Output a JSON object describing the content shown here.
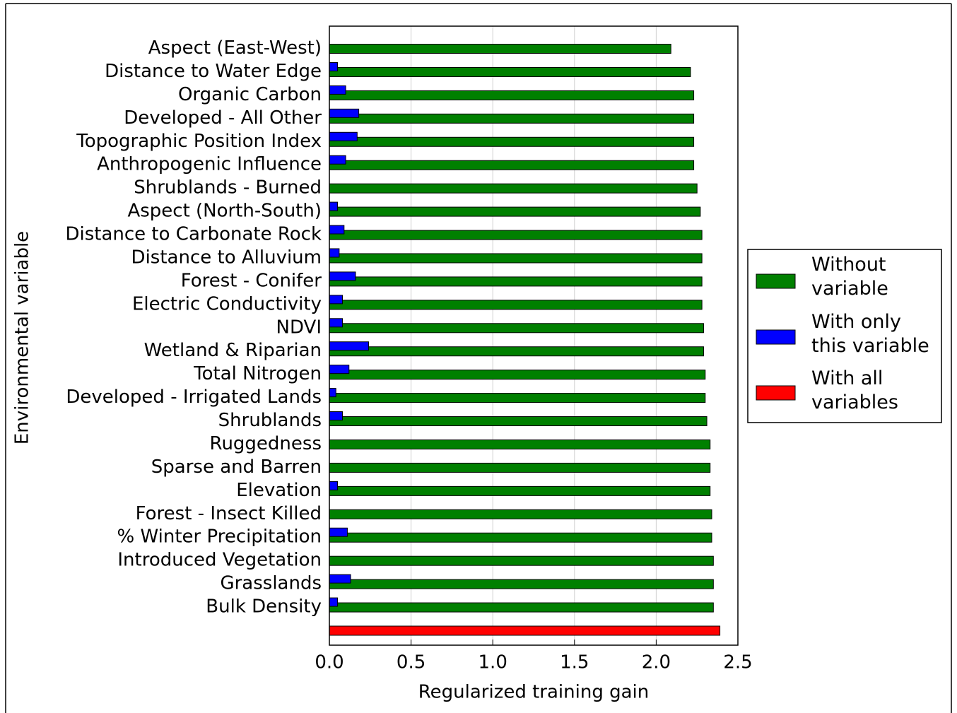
{
  "chart_data": {
    "type": "bar",
    "orientation": "horizontal",
    "xlabel": "Regularized training gain",
    "ylabel": "Environmental variable",
    "categories": [
      "Aspect (East-West)",
      "Distance to Water Edge",
      "Organic Carbon",
      "Developed - All Other",
      "Topographic Position Index",
      "Anthropogenic Influence",
      "Shrublands - Burned",
      "Aspect (North-South)",
      "Distance to Carbonate Rock",
      "Distance to Alluvium",
      "Forest - Conifer",
      "Electric Conductivity",
      "NDVI",
      "Wetland & Riparian",
      "Total Nitrogen",
      "Developed - Irrigated Lands",
      "Shrublands",
      "Ruggedness",
      "Sparse and Barren",
      "Elevation",
      "Forest - Insect Killed",
      "% Winter Precipitation",
      "Introduced Vegetation",
      "Grasslands",
      "Bulk Density",
      null
    ],
    "series": [
      {
        "name": "Without variable",
        "color": "#008000",
        "values": [
          2.09,
          2.21,
          2.23,
          2.23,
          2.23,
          2.23,
          2.25,
          2.27,
          2.28,
          2.28,
          2.28,
          2.28,
          2.29,
          2.29,
          2.3,
          2.3,
          2.31,
          2.33,
          2.33,
          2.33,
          2.34,
          2.34,
          2.35,
          2.35,
          2.35,
          null
        ]
      },
      {
        "name": "With only this variable",
        "color": "#0000ff",
        "values": [
          0,
          0.05,
          0.1,
          0.18,
          0.17,
          0.1,
          0,
          0.05,
          0.09,
          0.06,
          0.16,
          0.08,
          0.08,
          0.24,
          0.12,
          0.04,
          0.08,
          0,
          0,
          0.05,
          0,
          0.11,
          0,
          0.13,
          0.05,
          null
        ]
      },
      {
        "name": "With all variables",
        "color": "#ff0000",
        "values": [
          null,
          null,
          null,
          null,
          null,
          null,
          null,
          null,
          null,
          null,
          null,
          null,
          null,
          null,
          null,
          null,
          null,
          null,
          null,
          null,
          null,
          null,
          null,
          null,
          null,
          2.39
        ]
      }
    ],
    "xlim": [
      0,
      2.5
    ],
    "xticks": [
      {
        "value": 0,
        "label": "0.0"
      },
      0.5,
      {
        "value": 1,
        "label": "1.0"
      },
      1.5,
      {
        "value": 2,
        "label": "2.0"
      },
      2.5
    ],
    "grid": true,
    "legend": "right"
  }
}
